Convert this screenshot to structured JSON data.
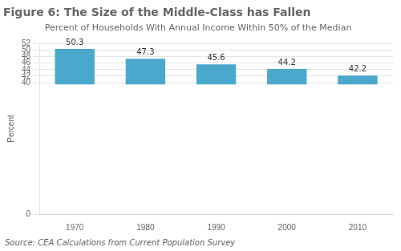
{
  "chart_data": {
    "type": "bar",
    "title": "Figure 6: The Size of the Middle-Class has Fallen",
    "subtitle": "Percent of Households With Annual Income Within 50% of the Median",
    "ylabel": "Percent",
    "source": "Source: CEA Calculations from Current Population Survey",
    "categories": [
      "1970",
      "1980",
      "1990",
      "2000",
      "2010"
    ],
    "values": [
      50.3,
      47.3,
      45.6,
      44.2,
      42.2
    ],
    "bar_bottom": 39.5,
    "color": "#4aa8cc",
    "ylim": [
      0,
      52
    ],
    "yticks": [
      0,
      40,
      42,
      44,
      46,
      48,
      50,
      52
    ],
    "grid": true,
    "data_labels": true
  }
}
